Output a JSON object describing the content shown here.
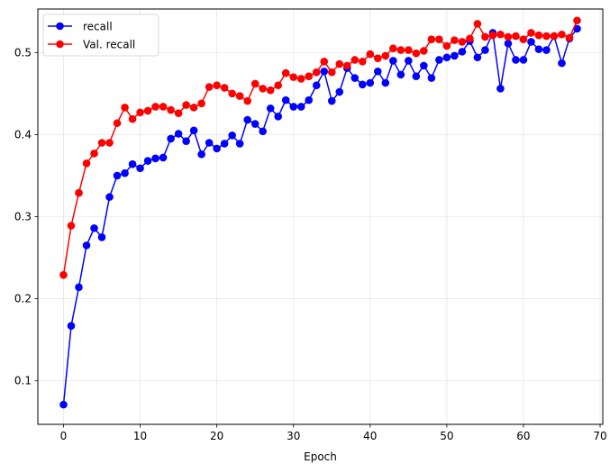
{
  "chart_data": {
    "type": "line",
    "title": "",
    "xlabel": "Epoch",
    "ylabel": "",
    "xlim": [
      -3.35,
      70.35
    ],
    "ylim": [
      0.047,
      0.553
    ],
    "xticks": [
      0,
      10,
      20,
      30,
      40,
      50,
      60,
      70
    ],
    "yticks": [
      0.1,
      0.2,
      0.3,
      0.4,
      0.5
    ],
    "grid": true,
    "legend": "top-left",
    "x": [
      0,
      1,
      2,
      3,
      4,
      5,
      6,
      7,
      8,
      9,
      10,
      11,
      12,
      13,
      14,
      15,
      16,
      17,
      18,
      19,
      20,
      21,
      22,
      23,
      24,
      25,
      26,
      27,
      28,
      29,
      30,
      31,
      32,
      33,
      34,
      35,
      36,
      37,
      38,
      39,
      40,
      41,
      42,
      43,
      44,
      45,
      46,
      47,
      48,
      49,
      50,
      51,
      52,
      53,
      54,
      55,
      56,
      57,
      58,
      59,
      60,
      61,
      62,
      63,
      64,
      65,
      66,
      67
    ],
    "series": [
      {
        "name": "recall",
        "color": "#0000ff",
        "values": [
          0.071,
          0.167,
          0.214,
          0.265,
          0.286,
          0.275,
          0.324,
          0.35,
          0.353,
          0.364,
          0.359,
          0.368,
          0.371,
          0.372,
          0.395,
          0.401,
          0.392,
          0.405,
          0.376,
          0.39,
          0.383,
          0.389,
          0.399,
          0.389,
          0.418,
          0.413,
          0.404,
          0.432,
          0.422,
          0.442,
          0.434,
          0.434,
          0.442,
          0.46,
          0.477,
          0.441,
          0.452,
          0.481,
          0.469,
          0.461,
          0.463,
          0.477,
          0.463,
          0.49,
          0.473,
          0.49,
          0.471,
          0.484,
          0.469,
          0.491,
          0.494,
          0.496,
          0.501,
          0.514,
          0.494,
          0.503,
          0.524,
          0.456,
          0.511,
          0.491,
          0.491,
          0.513,
          0.504,
          0.503,
          0.52,
          0.487,
          0.517,
          0.529
        ]
      },
      {
        "name": "Val. recall",
        "color": "#ff0000",
        "values": [
          0.229,
          0.289,
          0.329,
          0.365,
          0.377,
          0.39,
          0.39,
          0.414,
          0.433,
          0.419,
          0.427,
          0.429,
          0.434,
          0.434,
          0.43,
          0.426,
          0.436,
          0.433,
          0.438,
          0.458,
          0.46,
          0.457,
          0.45,
          0.447,
          0.441,
          0.462,
          0.456,
          0.454,
          0.46,
          0.475,
          0.47,
          0.468,
          0.471,
          0.476,
          0.489,
          0.476,
          0.486,
          0.484,
          0.491,
          0.489,
          0.498,
          0.493,
          0.496,
          0.505,
          0.503,
          0.503,
          0.499,
          0.502,
          0.516,
          0.516,
          0.508,
          0.515,
          0.513,
          0.517,
          0.535,
          0.519,
          0.521,
          0.522,
          0.519,
          0.52,
          0.516,
          0.524,
          0.521,
          0.52,
          0.52,
          0.522,
          0.518,
          0.539
        ]
      }
    ]
  }
}
